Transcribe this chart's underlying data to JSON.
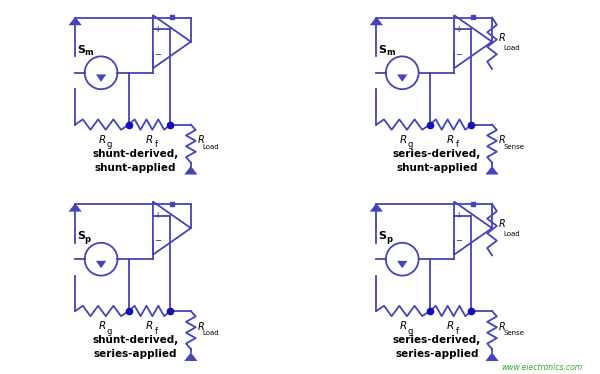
{
  "bg_color": "#ffffff",
  "line_color": "#4444bb",
  "dot_color": "#1111bb",
  "text_color": "#000000",
  "watermark": "www.eiectronics.com",
  "watermark_color": "#33aa33",
  "figsize": [
    6.0,
    3.74
  ],
  "dpi": 100,
  "panels": [
    {
      "title": "shunt-derived,\nshunt-applied",
      "source_sub": "m",
      "has_rsense": false,
      "series_applied": false
    },
    {
      "title": "series-derived,\nshunt-applied",
      "source_sub": "m",
      "has_rsense": true,
      "series_applied": false
    },
    {
      "title": "shunt-derived,\nseries-applied",
      "source_sub": "p",
      "has_rsense": false,
      "series_applied": true
    },
    {
      "title": "series-derived,\nseries-applied",
      "source_sub": "p",
      "has_rsense": true,
      "series_applied": true
    }
  ]
}
